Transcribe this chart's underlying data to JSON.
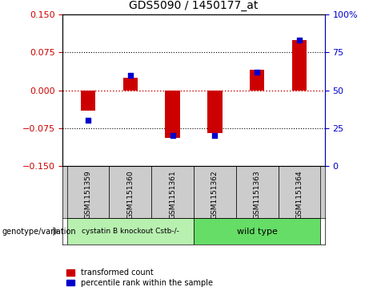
{
  "title": "GDS5090 / 1450177_at",
  "samples": [
    "GSM1151359",
    "GSM1151360",
    "GSM1151361",
    "GSM1151362",
    "GSM1151363",
    "GSM1151364"
  ],
  "red_values": [
    -0.04,
    0.025,
    -0.095,
    -0.085,
    0.04,
    0.1
  ],
  "blue_values_pct": [
    30,
    60,
    20,
    20,
    62,
    83
  ],
  "group1_color": "#b8f0b0",
  "group2_color": "#66dd66",
  "ylim_left": [
    -0.15,
    0.15
  ],
  "ylim_right": [
    0,
    100
  ],
  "yticks_left": [
    -0.15,
    -0.075,
    0,
    0.075,
    0.15
  ],
  "yticks_right": [
    0,
    25,
    50,
    75,
    100
  ],
  "red_color": "#cc0000",
  "blue_color": "#0000cc",
  "bar_width": 0.35,
  "hline_color": "#cc0000",
  "sample_bg_color": "#cccccc",
  "legend_red_label": "transformed count",
  "legend_blue_label": "percentile rank within the sample",
  "genotype_label": "genotype/variation",
  "group1_label": "cystatin B knockout Cstb-/-",
  "group2_label": "wild type"
}
